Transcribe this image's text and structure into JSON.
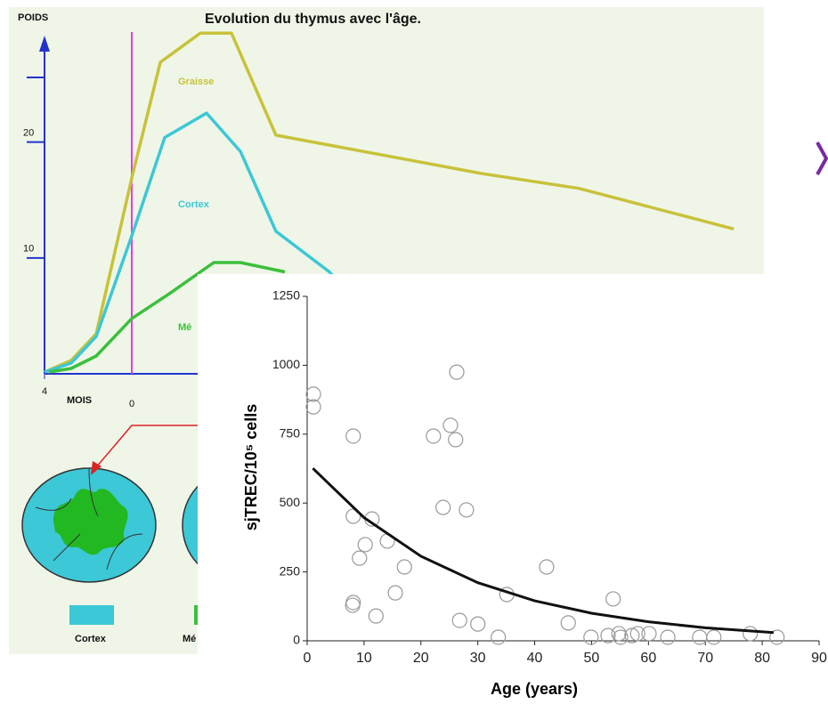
{
  "chart_data": [
    {
      "type": "line",
      "title": "Evolution du thymus avec l'âge.",
      "ylabel": "POIDS",
      "xlabel": "MOIS",
      "xlim": [
        -4,
        28
      ],
      "ylim": [
        0,
        31.5
      ],
      "xticks": [
        {
          "value": -4,
          "label": "4"
        },
        0
      ],
      "yticks": [
        10,
        20
      ],
      "series": [
        {
          "name": "Graisse",
          "color": "#c8c23a",
          "x": [
            -4,
            -2.78,
            -1.63,
            0,
            1.31,
            3.14,
            4.57,
            6.61,
            16.0,
            20.5,
            27.6
          ],
          "values": [
            0.15,
            1.15,
            3.46,
            16.9,
            26.9,
            29.4,
            29.4,
            20.6,
            17.3,
            16.0,
            12.5
          ]
        },
        {
          "name": "Cortex",
          "color": "#3cc8d6",
          "x": [
            -4,
            -2.78,
            -1.63,
            0,
            1.51,
            3.43,
            4.98,
            6.61,
            9.06,
            10.3
          ],
          "values": [
            0.15,
            0.92,
            3.23,
            11.9,
            20.4,
            22.5,
            19.2,
            12.3,
            8.8,
            6.2
          ]
        },
        {
          "name": "Mé",
          "color": "#3cbf3c",
          "x": [
            -3.8,
            -2.78,
            -1.63,
            0,
            1.71,
            3.76,
            4.98,
            7.02
          ],
          "values": [
            0.15,
            0.46,
            1.54,
            4.77,
            6.9,
            9.6,
            9.6,
            8.8
          ]
        }
      ]
    },
    {
      "type": "scatter",
      "ylabel": "sjTREC/10⁵ cells",
      "xlabel": "Age (years)",
      "xlim": [
        0,
        90
      ],
      "ylim": [
        0,
        1250
      ],
      "xticks": [
        0,
        10,
        20,
        30,
        40,
        50,
        60,
        70,
        80,
        90
      ],
      "yticks": [
        0,
        250,
        500,
        750,
        1000,
        1250
      ],
      "series": [
        {
          "type": "scatter",
          "color": "#999999",
          "x": [
            1.1,
            1.1,
            8.1,
            26.3,
            25.2,
            26.1,
            22.2,
            23.9,
            28.0,
            8.1,
            11.4,
            10.2,
            9.2,
            14.1,
            17.1,
            15.5,
            8.1,
            8.0,
            12.1,
            26.8,
            30.0,
            35.1,
            33.6,
            42.1,
            53.8,
            45.9,
            49.9,
            52.9,
            54.8,
            55.1,
            57.1,
            58.1,
            60.1,
            63.4,
            69.0,
            71.5,
            77.9,
            82.6
          ],
          "values": [
            895,
            849,
            743,
            975,
            782,
            730,
            743,
            484,
            475,
            452,
            442,
            349,
            300,
            362,
            268,
            174,
            139,
            129,
            90,
            74,
            61,
            168,
            13,
            268,
            152,
            65,
            13,
            19,
            26,
            13,
            19,
            26,
            26,
            13,
            13,
            13,
            26,
            13
          ]
        },
        {
          "type": "line",
          "color": "#111111",
          "x": [
            1,
            10,
            20,
            30,
            40,
            50,
            60,
            70,
            82
          ],
          "values": [
            626,
            447,
            307,
            211,
            145,
            100,
            69,
            47,
            30
          ]
        }
      ]
    }
  ]
}
